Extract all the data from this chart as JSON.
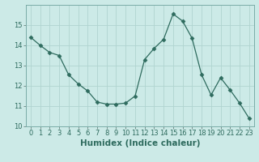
{
  "xlabel": "Humidex (Indice chaleur)",
  "x": [
    0,
    1,
    2,
    3,
    4,
    5,
    6,
    7,
    8,
    9,
    10,
    11,
    12,
    13,
    14,
    15,
    16,
    17,
    18,
    19,
    20,
    21,
    22,
    23
  ],
  "y": [
    14.4,
    14.0,
    13.65,
    13.5,
    12.55,
    12.1,
    11.75,
    11.2,
    11.1,
    11.1,
    11.15,
    11.5,
    13.3,
    13.85,
    14.3,
    15.55,
    15.2,
    14.35,
    12.55,
    11.55,
    12.4,
    11.8,
    11.15,
    10.4
  ],
  "line_color": "#2e6b5e",
  "marker": "D",
  "marker_size": 2.5,
  "bg_color": "#cceae7",
  "grid_color": "#b0d4d0",
  "ylim": [
    10,
    16
  ],
  "xlim": [
    -0.5,
    23.5
  ],
  "yticks": [
    10,
    11,
    12,
    13,
    14,
    15
  ],
  "xticks": [
    0,
    1,
    2,
    3,
    4,
    5,
    6,
    7,
    8,
    9,
    10,
    11,
    12,
    13,
    14,
    15,
    16,
    17,
    18,
    19,
    20,
    21,
    22,
    23
  ],
  "tick_fontsize": 6,
  "xlabel_fontsize": 7.5,
  "line_width": 0.9
}
